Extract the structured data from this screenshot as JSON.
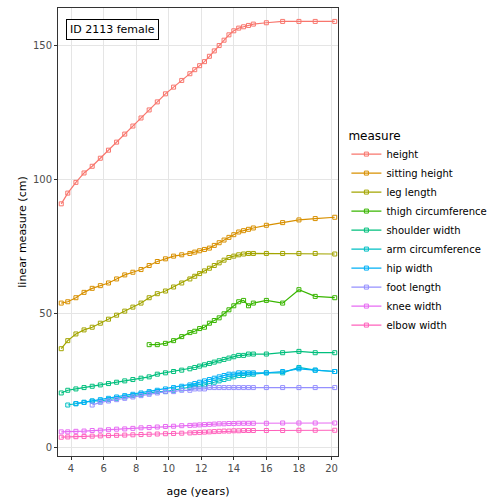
{
  "chart_data": {
    "type": "line",
    "annotation": "ID 2113 female",
    "x_label": "age (years)",
    "y_label": "linear measure (cm)",
    "legend_title": "measure",
    "legend": "right",
    "grid": true,
    "marker": "square-open",
    "line_style": "solid",
    "xlim": [
      3.2,
      20.4
    ],
    "xticks": [
      4,
      6,
      8,
      10,
      12,
      14,
      16,
      18,
      20
    ],
    "ylim": [
      -3,
      164
    ],
    "yticks": [
      0,
      50,
      100,
      150
    ],
    "x": [
      3.4,
      3.8,
      4.3,
      4.8,
      5.3,
      5.8,
      6.3,
      6.8,
      7.3,
      7.8,
      8.3,
      8.8,
      9.3,
      9.8,
      10.3,
      10.8,
      11.3,
      11.6,
      11.9,
      12.2,
      12.5,
      12.8,
      13.1,
      13.4,
      13.7,
      14.0,
      14.3,
      14.6,
      14.9,
      15.2,
      16,
      17,
      18,
      19,
      20.2
    ],
    "series": [
      {
        "name": "height",
        "color": "#F8766D",
        "values": [
          91,
          95,
          99,
          102.5,
          105,
          108,
          111,
          114,
          117,
          120,
          123,
          126,
          129,
          132,
          134.5,
          137,
          139.5,
          141,
          142.5,
          144,
          146,
          148,
          150,
          152,
          154,
          155.5,
          156.5,
          157,
          157.5,
          158,
          158.5,
          159,
          159,
          159,
          159
        ]
      },
      {
        "name": "sitting height",
        "color": "#D89000",
        "values": [
          54,
          54.5,
          56,
          58,
          59.5,
          60.5,
          61.5,
          63,
          64.5,
          65.5,
          66.5,
          68,
          69.5,
          70.5,
          71.5,
          72,
          72.5,
          73,
          73.5,
          74,
          74.5,
          75.5,
          76.5,
          77.5,
          78.5,
          79.5,
          80.5,
          81,
          81.5,
          82,
          83,
          84,
          85,
          85.5,
          86
        ]
      },
      {
        "name": "leg length",
        "color": "#A3A500",
        "values": [
          37,
          40,
          42.5,
          44,
          45,
          46.5,
          48,
          49.5,
          51,
          52.5,
          54,
          56,
          57.5,
          58.5,
          60,
          61.5,
          63,
          64,
          65,
          66,
          67,
          68,
          69,
          70,
          71,
          71.5,
          72,
          72.3,
          72.5,
          72.5,
          72.5,
          72.5,
          72.5,
          72.5,
          72.3
        ]
      },
      {
        "name": "thigh circumference",
        "color": "#39B600",
        "values": [
          null,
          null,
          null,
          null,
          null,
          null,
          null,
          null,
          null,
          null,
          null,
          38.5,
          38.5,
          39,
          40,
          41.5,
          43,
          43.5,
          44.5,
          45,
          46.5,
          47.5,
          48.5,
          50,
          51.5,
          53,
          54.5,
          55,
          53,
          54,
          55,
          54,
          59,
          56.5,
          56
        ]
      },
      {
        "name": "shoulder width",
        "color": "#00BF7D",
        "values": [
          20.5,
          21.5,
          22,
          22.5,
          23,
          23.5,
          24,
          24.5,
          25,
          25.5,
          26,
          26.5,
          27.5,
          28,
          28.5,
          29,
          29.5,
          30,
          30.5,
          31,
          31.5,
          32,
          32.5,
          33,
          33.5,
          34,
          34.5,
          34.5,
          35,
          35,
          35,
          35.5,
          36,
          35.5,
          35.5
        ]
      },
      {
        "name": "arm circumference",
        "color": "#00BFC4",
        "values": [
          null,
          16,
          16.5,
          17,
          17.5,
          17.5,
          18,
          18.5,
          19,
          19.5,
          20,
          20.5,
          21,
          21,
          21.5,
          22,
          22.5,
          23,
          23,
          23.5,
          24,
          24.5,
          25,
          25.5,
          26,
          26.5,
          27,
          27,
          27.5,
          27.5,
          28,
          28,
          30,
          29,
          28.5
        ]
      },
      {
        "name": "hip width",
        "color": "#00B0F6",
        "values": [
          null,
          null,
          16.5,
          17,
          17.5,
          18,
          18.5,
          19,
          19.5,
          20,
          20.5,
          21,
          21.5,
          22,
          22.5,
          23,
          23.5,
          24,
          24.5,
          25,
          25.5,
          26,
          26.5,
          27,
          27.5,
          27.5,
          28,
          28,
          28,
          28,
          28,
          28.5,
          29.5,
          29,
          28.5
        ]
      },
      {
        "name": "foot length",
        "color": "#9590FF",
        "values": [
          null,
          null,
          null,
          null,
          16,
          17,
          17.5,
          18,
          18.5,
          19,
          19.5,
          20,
          20.5,
          21,
          21,
          21.5,
          21.5,
          22,
          22,
          22,
          22.5,
          22.5,
          22.5,
          22.5,
          22.5,
          22.5,
          22.5,
          22.5,
          22.5,
          22.5,
          22.5,
          22.5,
          22.5,
          22.5,
          22.5
        ]
      },
      {
        "name": "knee width",
        "color": "#E76BF3",
        "values": [
          6,
          6,
          6.2,
          6.3,
          6.5,
          6.6,
          6.8,
          7,
          7.1,
          7.3,
          7.5,
          7.6,
          7.8,
          8,
          8.1,
          8.3,
          8.4,
          8.5,
          8.6,
          8.7,
          8.8,
          8.9,
          9,
          9,
          9.1,
          9.1,
          9.2,
          9.2,
          9.2,
          9.2,
          9.2,
          9.3,
          9.3,
          9.3,
          9.3
        ]
      },
      {
        "name": "elbow width",
        "color": "#FF62BC",
        "values": [
          4,
          4.1,
          4.2,
          4.3,
          4.4,
          4.5,
          4.6,
          4.7,
          4.8,
          4.9,
          5,
          5.1,
          5.2,
          5.3,
          5.4,
          5.5,
          5.6,
          5.7,
          5.8,
          5.9,
          6,
          6.1,
          6.2,
          6.3,
          6.3,
          6.4,
          6.4,
          6.5,
          6.5,
          6.5,
          6.5,
          6.5,
          6.6,
          6.6,
          6.6
        ]
      }
    ]
  }
}
